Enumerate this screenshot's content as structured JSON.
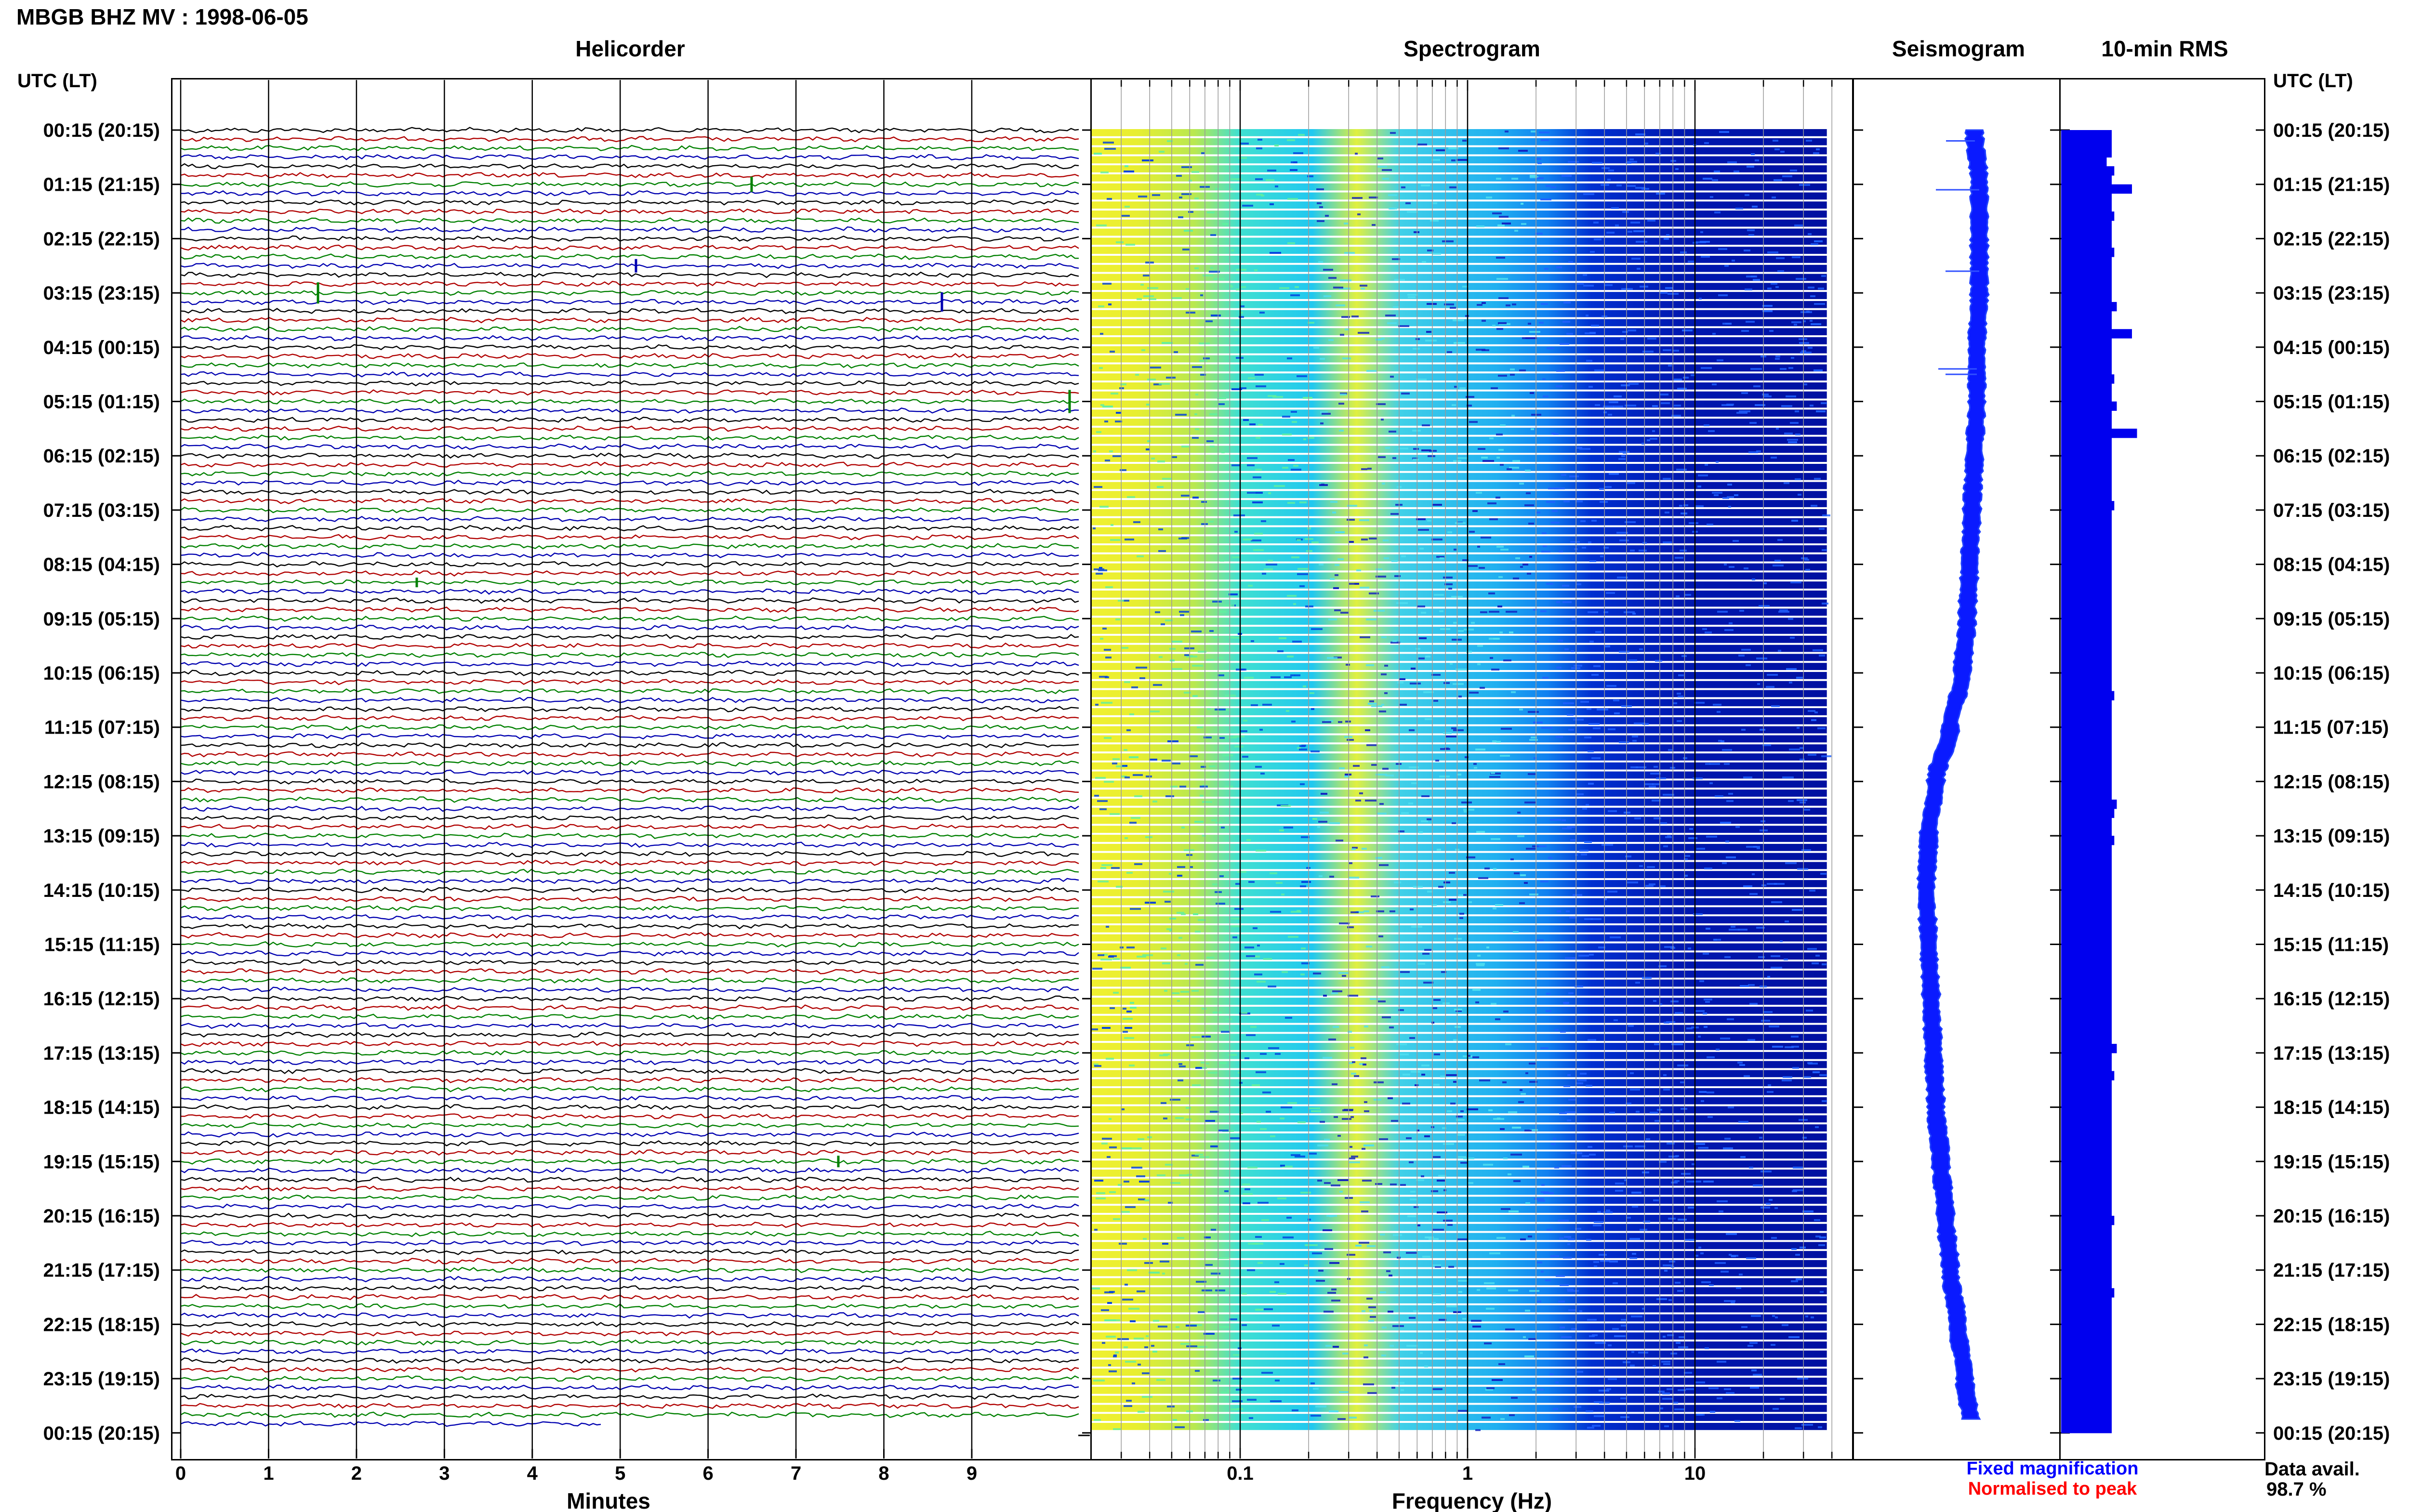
{
  "window": {
    "title": "MBGB BHZ MV : 1998-06-05"
  },
  "panels": {
    "helicorder": "Helicorder",
    "spectrogram": "Spectrogram",
    "seismogram": "Seismogram",
    "rms": "10-min RMS"
  },
  "axis_header_left": "UTC (LT)",
  "axis_header_right": "UTC (LT)",
  "legend": {
    "fixed": "Fixed magnification",
    "normalised": "Normalised to peak",
    "fixed_color": "#0000ff",
    "normalised_color": "#ff0000"
  },
  "data_availability": {
    "label": "Data avail.",
    "value": "98.7 %"
  },
  "colors": {
    "trace_cycle": [
      "#000000",
      "#b00000",
      "#008000",
      "#0000b0"
    ],
    "spectrogram_low": "#e8ee30",
    "spectrogram_mid": "#30d0e0",
    "spectrogram_high": "#0010a0",
    "bars": "#0000ee"
  },
  "chart_data": [
    {
      "type": "line",
      "title": "Helicorder",
      "xlabel": "Minutes",
      "x_ticks": [
        "0",
        "1",
        "2",
        "3",
        "4",
        "5",
        "6",
        "7",
        "8",
        "9"
      ],
      "xlim": [
        0,
        10
      ],
      "y_tick_labels": [
        "00:15 (20:15)",
        "01:15 (21:15)",
        "02:15 (22:15)",
        "03:15 (23:15)",
        "04:15 (00:15)",
        "05:15 (01:15)",
        "06:15 (02:15)",
        "07:15 (03:15)",
        "08:15 (04:15)",
        "09:15 (05:15)",
        "10:15 (06:15)",
        "11:15 (07:15)",
        "12:15 (08:15)",
        "13:15 (09:15)",
        "14:15 (10:15)",
        "15:15 (11:15)",
        "16:15 (12:15)",
        "17:15 (13:15)",
        "18:15 (14:15)",
        "19:15 (15:15)",
        "20:15 (16:15)",
        "21:15 (17:15)",
        "22:15 (18:15)",
        "23:15 (19:15)",
        "00:15 (20:15)"
      ],
      "traces_per_hour": 6,
      "num_traces": 144,
      "last_trace_fraction": 0.47
    },
    {
      "type": "heatmap",
      "title": "Spectrogram",
      "xlabel": "Frequency (Hz)",
      "x_scale": "log",
      "x_ticks": [
        "0.1",
        "1",
        "10"
      ],
      "xlim": [
        0.03,
        40
      ]
    },
    {
      "type": "line",
      "title": "Seismogram",
      "trend_offsets": [
        0.0,
        0.1,
        0.1,
        0.1,
        0.05,
        0.05,
        0.0,
        -0.05,
        -0.1,
        -0.15,
        -0.25,
        -0.5,
        -0.8,
        -0.95,
        -1.0,
        -0.95,
        -0.9,
        -0.85,
        -0.8,
        -0.7,
        -0.6,
        -0.5,
        -0.35,
        -0.2,
        -0.05
      ],
      "trend_hours": [
        0,
        1,
        2,
        3,
        4,
        5,
        6,
        7,
        8,
        9,
        10,
        11,
        12,
        13,
        14,
        15,
        16,
        17,
        18,
        19,
        20,
        21,
        22,
        23,
        24
      ]
    },
    {
      "type": "bar",
      "title": "10-min RMS",
      "orientation": "horizontal",
      "values": [
        1.0,
        1.0,
        1.0,
        0.9,
        1.05,
        1.0,
        1.4,
        1.0,
        1.0,
        1.05,
        1.0,
        1.0,
        1.0,
        1.05,
        1.0,
        1.0,
        1.0,
        1.0,
        1.0,
        1.1,
        1.0,
        1.0,
        1.4,
        1.0,
        1.0,
        1.0,
        1.0,
        1.05,
        1.0,
        1.0,
        1.1,
        1.0,
        1.0,
        1.5,
        1.0,
        1.0,
        1.0,
        1.0,
        1.0,
        1.0,
        1.0,
        1.05,
        1.0,
        1.0,
        1.0,
        1.0,
        1.0,
        1.0,
        1.0,
        1.0,
        1.0,
        1.0,
        1.0,
        1.0,
        1.0,
        1.0,
        1.0,
        1.0,
        1.0,
        1.0,
        1.0,
        1.0,
        1.05,
        1.0,
        1.0,
        1.0,
        1.0,
        1.0,
        1.0,
        1.0,
        1.0,
        1.0,
        1.0,
        1.0,
        1.1,
        1.05,
        1.0,
        1.0,
        1.05,
        1.0,
        1.0,
        1.0,
        1.0,
        1.0,
        1.0,
        1.0,
        1.0,
        1.0,
        1.0,
        1.0,
        1.0,
        1.0,
        1.0,
        1.0,
        1.0,
        1.0,
        1.0,
        1.0,
        1.0,
        1.0,
        1.0,
        1.1,
        1.0,
        1.0,
        1.05,
        1.0,
        1.0,
        1.0,
        1.0,
        1.0,
        1.0,
        1.0,
        1.0,
        1.0,
        1.0,
        1.0,
        1.0,
        1.0,
        1.0,
        1.0,
        1.05,
        1.0,
        1.0,
        1.0,
        1.0,
        1.0,
        1.0,
        1.0,
        1.05,
        1.0,
        1.0,
        1.0,
        1.0,
        1.0,
        1.0,
        1.0,
        1.0,
        1.0,
        1.0,
        1.0,
        1.0,
        1.0,
        1.0,
        1.0
      ]
    }
  ]
}
